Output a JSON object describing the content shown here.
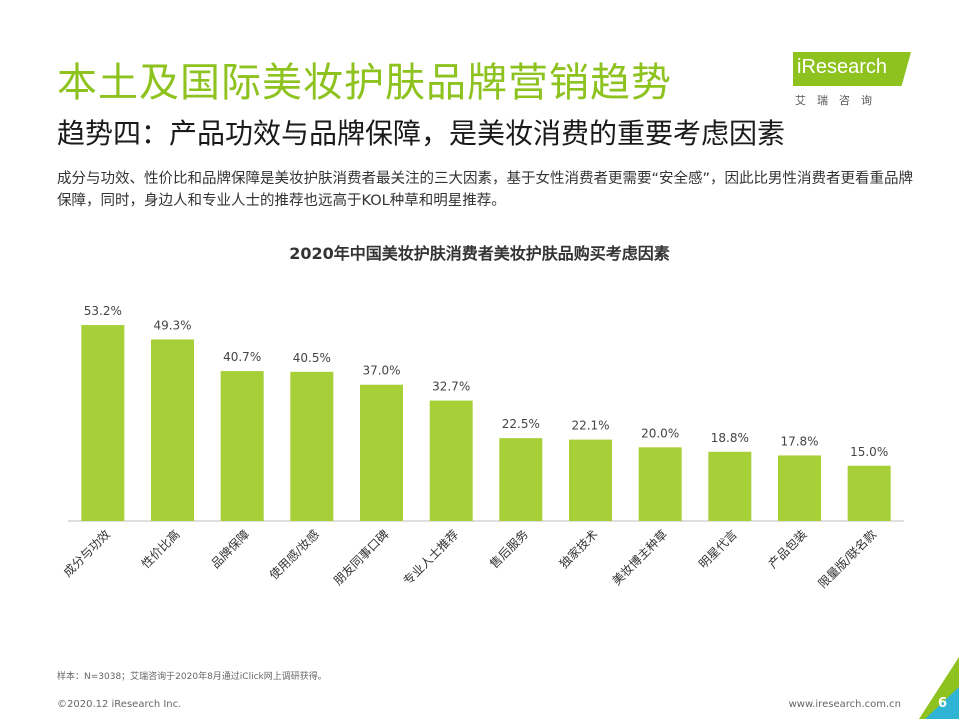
{
  "header": {
    "title": "本土及国际美妆护肤品牌营销趋势",
    "subtitle": "趋势四：产品功效与品牌保障，是美妆消费的重要考虑因素",
    "intro": "成分与功效、性价比和品牌保障是美妆护肤消费者最关注的三大因素，基于女性消费者更需要“安全感”，因此比男性消费者更看重品牌保障，同时，身边人和专业人士的推荐也远高于KOL种草和明星推荐。"
  },
  "logo": {
    "brand": "iResearch",
    "sub": "艾瑞咨询"
  },
  "chart_data": {
    "type": "bar",
    "title": "2020年中国美妆护肤消费者美妆护肤品购买考虑因素",
    "categories": [
      "成分与功效",
      "性价比高",
      "品牌保障",
      "使用感/妆感",
      "朋友同事口碑",
      "专业人士推荐",
      "售后服务",
      "独家技术",
      "美妆博主种草",
      "明星代言",
      "产品包装",
      "限量版/联名款"
    ],
    "values": [
      53.2,
      49.3,
      40.7,
      40.5,
      37.0,
      32.7,
      22.5,
      22.1,
      20.0,
      18.8,
      17.8,
      15.0
    ],
    "value_labels": [
      "53.2%",
      "49.3%",
      "40.7%",
      "40.5%",
      "37.0%",
      "32.7%",
      "22.5%",
      "22.1%",
      "20.0%",
      "18.8%",
      "17.8%",
      "15.0%"
    ],
    "xlabel": "",
    "ylabel": "",
    "ylim": [
      0,
      60
    ],
    "bar_color": "#a6cf38",
    "grid": false
  },
  "footer": {
    "note": "样本：N=3038；艾瑞咨询于2020年8月通过iClick网上调研获得。",
    "copyright": "©2020.12 iResearch Inc.",
    "website": "www.iresearch.com.cn",
    "page": "6"
  },
  "colors": {
    "accent": "#8dc21f",
    "secondary": "#2fb4d5"
  }
}
